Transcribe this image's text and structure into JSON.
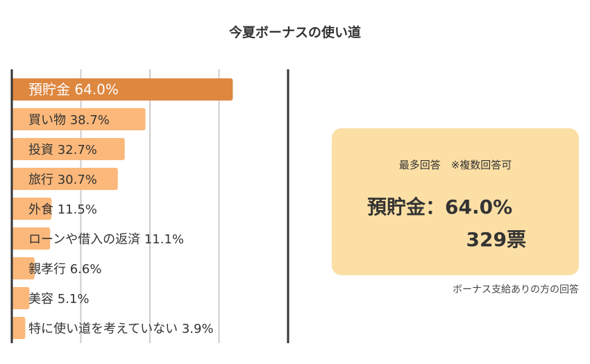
{
  "colors": {
    "highlight_bar": "#de873f",
    "bar": "#fbb87a",
    "grid": "#cccccc",
    "axis": "#333333",
    "summary_bg": "#fbdfa5"
  },
  "chart_data": {
    "type": "bar",
    "orientation": "horizontal",
    "title": "今夏ボーナスの使い道",
    "categories": [
      "預貯金",
      "買い物",
      "投資",
      "旅行",
      "外食",
      "ローンや借入の返済",
      "親孝行",
      "美容",
      "特に使い道を考えていない"
    ],
    "values": [
      64.0,
      38.7,
      32.7,
      30.7,
      11.5,
      11.1,
      6.6,
      5.1,
      3.9
    ],
    "labels": [
      "預貯金 64.0%",
      "買い物 38.7%",
      "投資 32.7%",
      "旅行 30.7%",
      "外食 11.5%",
      "ローンや借入の返済 11.1%",
      "親孝行 6.6%",
      "美容 5.1%",
      "特に使い道を考えていない 3.9%"
    ],
    "unit": "%",
    "xlim": [
      0,
      80
    ],
    "grid": true,
    "grid_step": 20,
    "highlight_index": 0
  },
  "summary": {
    "caption": "最多回答　※複数回答可",
    "main": "預貯金：64.0%",
    "votes": "329票"
  },
  "footnote": "ボーナス支給ありの方の回答"
}
